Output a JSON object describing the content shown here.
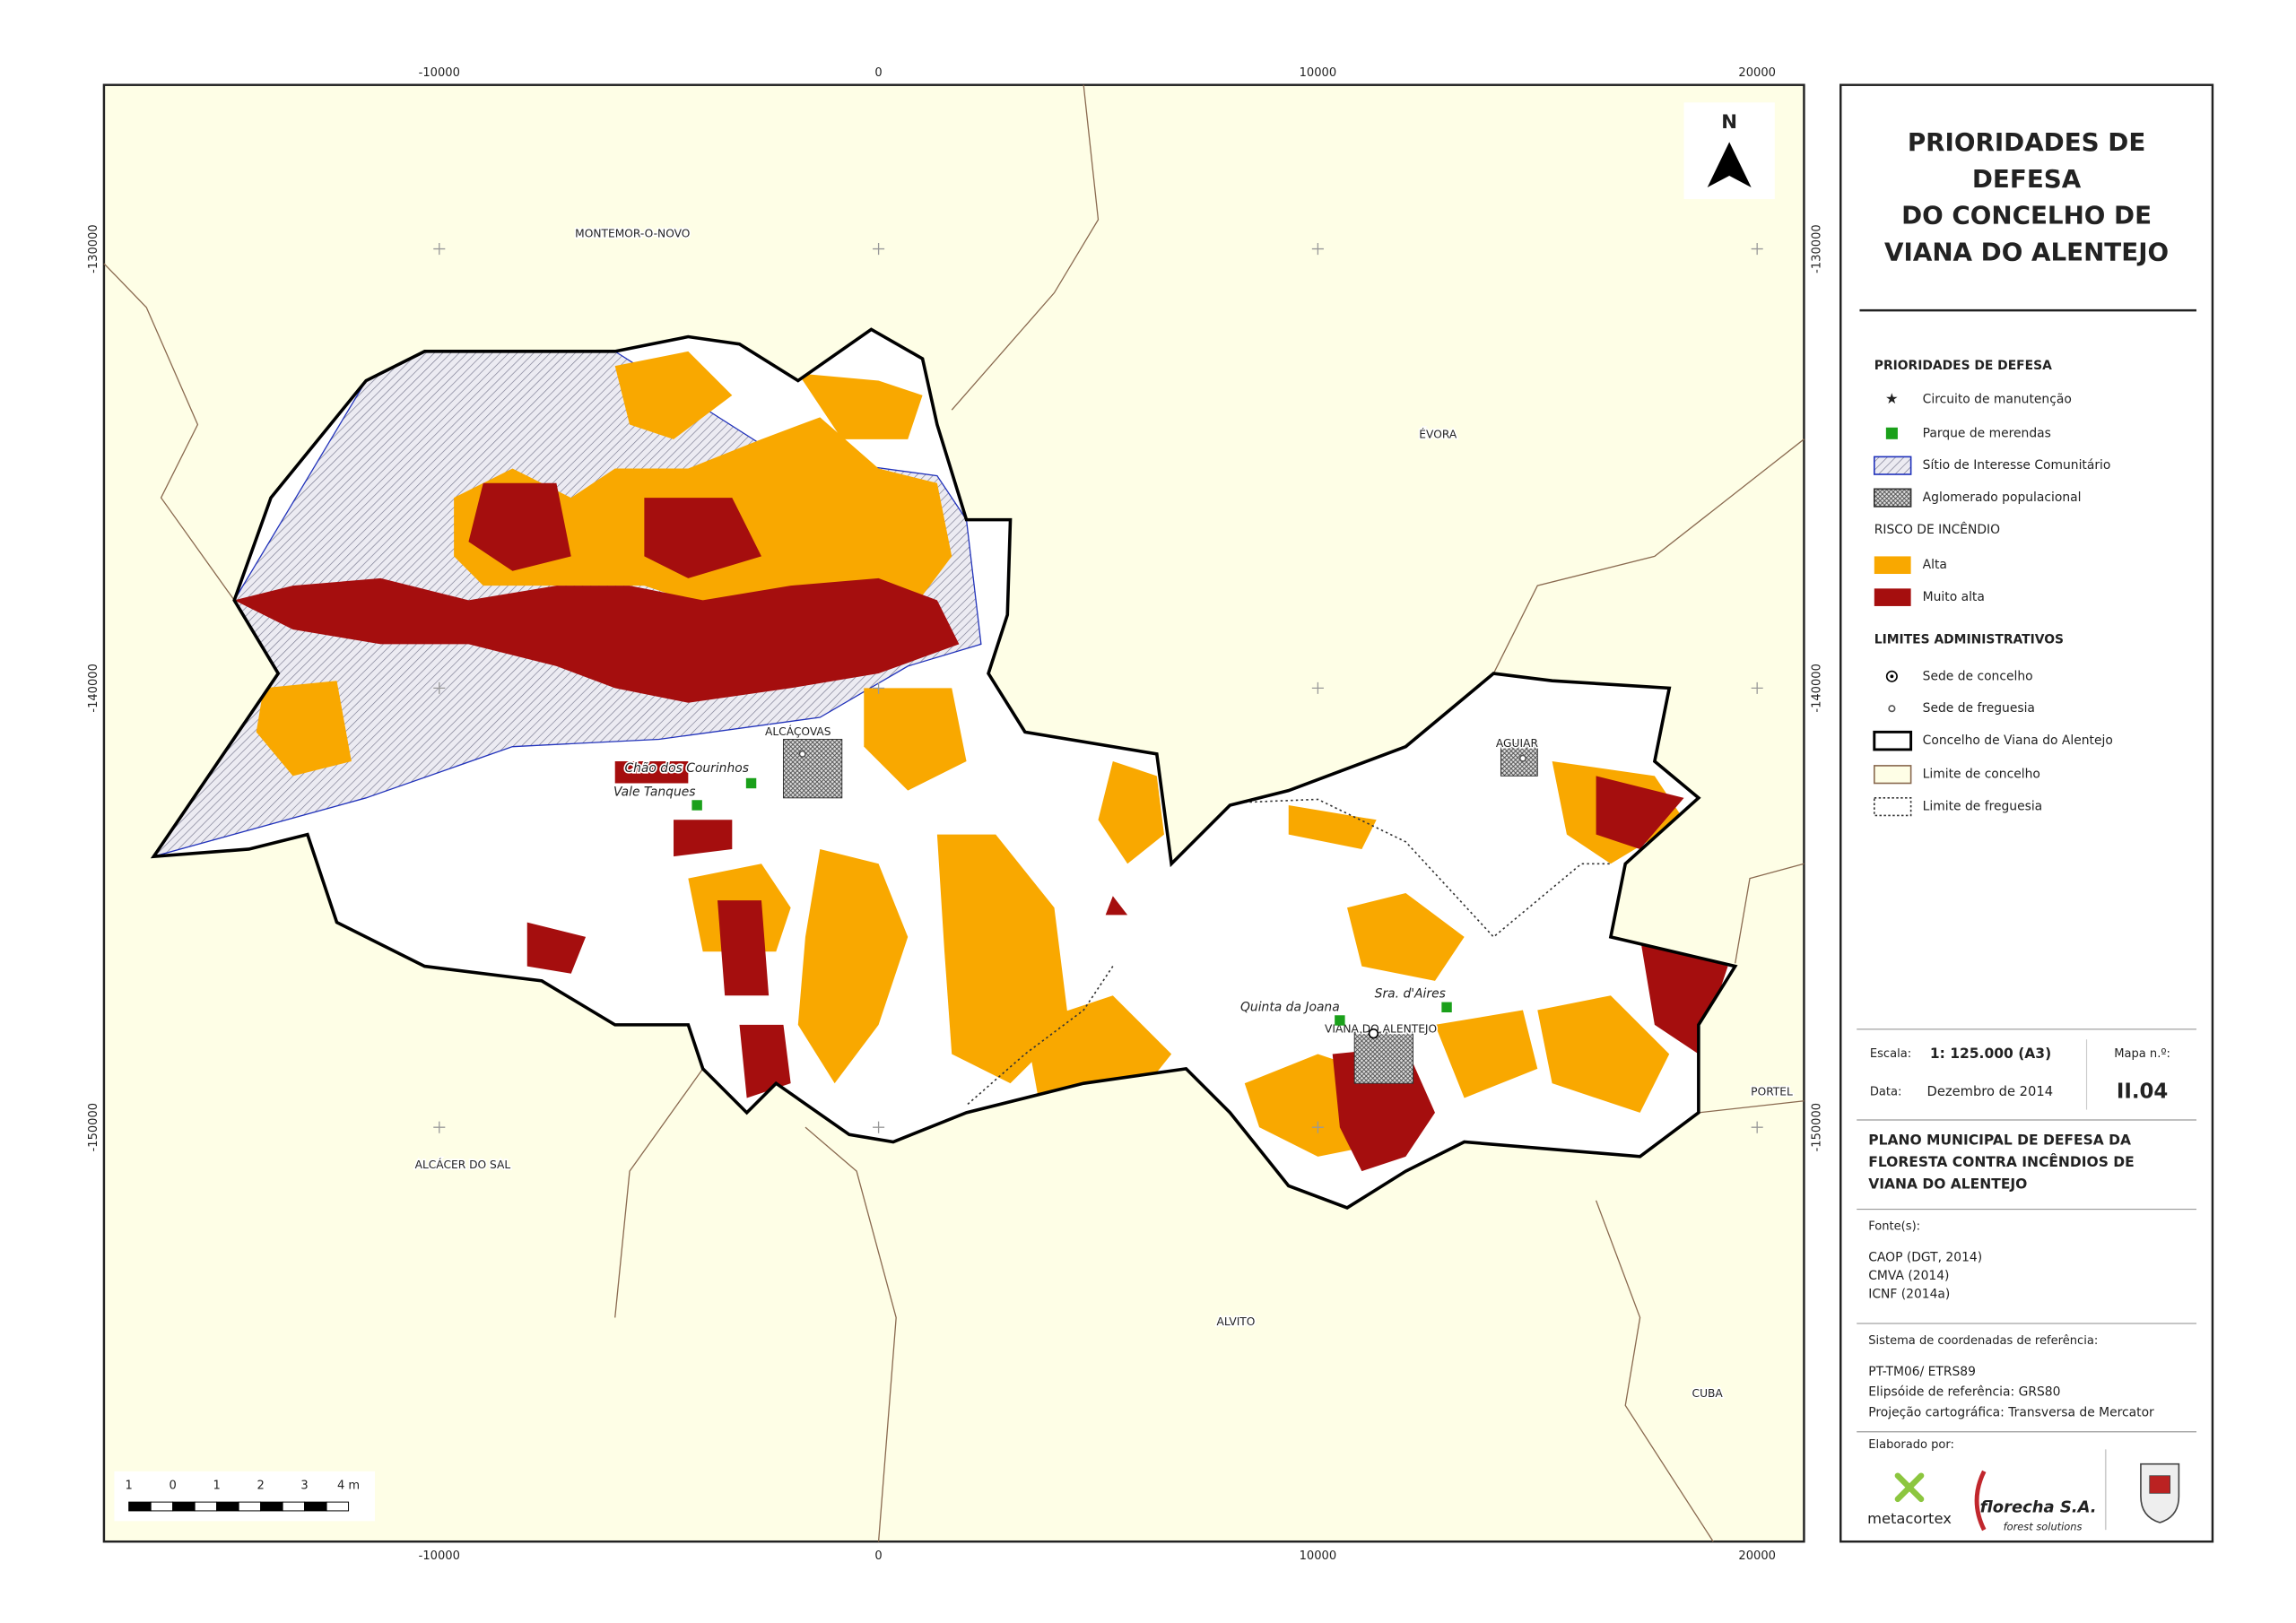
{
  "map": {
    "grid_labels": {
      "top": [
        "-10000",
        "0",
        "10000",
        "20000"
      ],
      "bottom": [
        "-10000",
        "0",
        "10000",
        "20000"
      ],
      "left": [
        "-130000",
        "-140000",
        "-150000"
      ],
      "right": [
        "-130000",
        "-140000",
        "-150000"
      ]
    },
    "places": [
      "MONTEMOR-O-NOVO",
      "ÉVORA",
      "ALCÁCER DO SAL",
      "ALVITO",
      "PORTEL",
      "CUBA",
      "ALCÁÇOVAS",
      "AGUIAR",
      "VIANA DO ALENTEJO"
    ],
    "sites": [
      "Chão dos Courinhos",
      "Vale Tanques",
      "Quinta da Joana",
      "Sra. d'Aires"
    ],
    "north": "N",
    "scale_bar": [
      "1",
      "0",
      "1",
      "2",
      "3",
      "4 m"
    ]
  },
  "legend": {
    "title": [
      "PRIORIDADES DE",
      "DEFESA",
      "DO CONCELHO DE",
      "VIANA DO ALENTEJO"
    ],
    "sections": [
      {
        "heading": "PRIORIDADES DE DEFESA",
        "items": [
          "Circuito de manutenção",
          "Parque de merendas",
          "Sítio de Interesse Comunitário",
          "Aglomerado populacional"
        ]
      },
      {
        "heading": "RISCO DE INCÊNDIO",
        "items": [
          "Alta",
          "Muito alta"
        ]
      },
      {
        "heading": "LIMITES ADMINISTRATIVOS",
        "items": [
          "Sede de concelho",
          "Sede de freguesia",
          "Concelho de Viana do Alentejo",
          "Limite de concelho",
          "Limite de freguesia"
        ]
      }
    ],
    "scale_label": "Escala:",
    "scale": "1: 125.000 (A3)",
    "map_no_label": "Mapa n.º:",
    "map_no": "II.04",
    "date_label": "Data:",
    "date": "Dezembro de 2014",
    "plan": [
      "PLANO MUNICIPAL DE DEFESA DA",
      "FLORESTA CONTRA INCÊNDIOS DE",
      "VIANA DO ALENTEJO"
    ],
    "sources_label": "Fonte(s):",
    "sources": [
      "CAOP (DGT, 2014)",
      "CMVA (2014)",
      "ICNF (2014a)"
    ],
    "crs_label": "Sistema de coordenadas de referência:",
    "crs": [
      "PT-TM06/ ETRS89",
      "Elipsóide de referência: GRS80",
      "Projeção cartográfica: Transversa de Mercator"
    ],
    "made_by": "Elaborado por:",
    "logos": [
      "metacortex",
      "florecha S.A.",
      "forest solutions"
    ]
  }
}
